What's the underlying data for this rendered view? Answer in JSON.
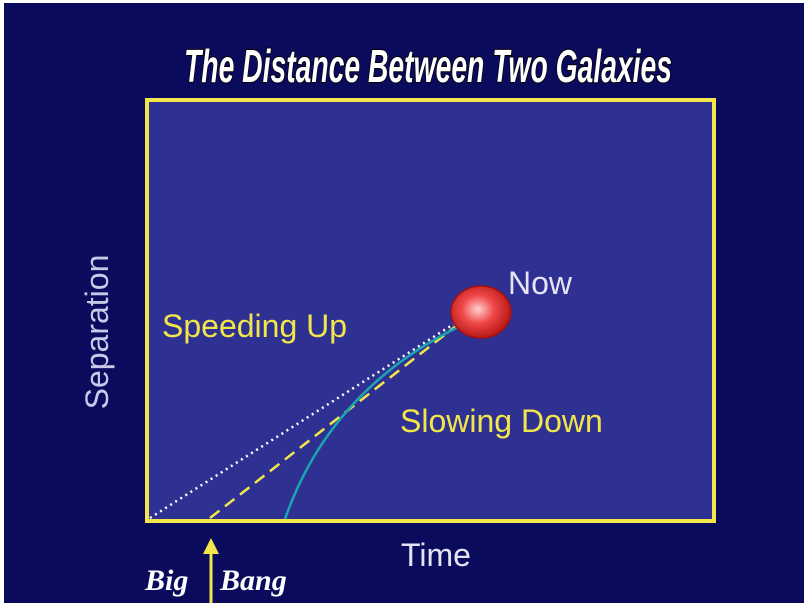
{
  "title": "The Distance Between Two Galaxies",
  "y_axis_label": "Separation",
  "x_axis_label": "Time",
  "labels": {
    "now": "Now",
    "speeding_up": "Speeding Up",
    "slowing_down": "Slowing Down"
  },
  "big_bang": [
    "Big",
    "Bang"
  ]
}
